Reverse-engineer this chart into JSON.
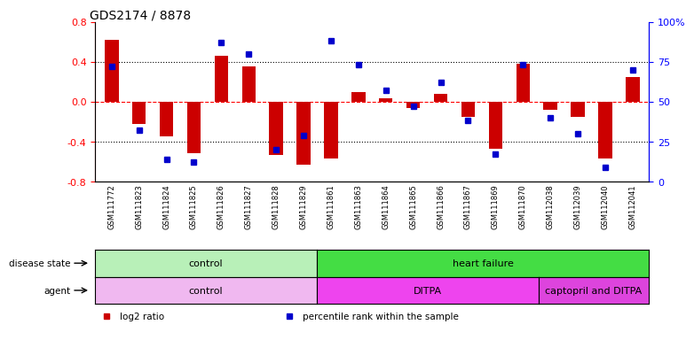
{
  "title": "GDS2174 / 8878",
  "samples": [
    "GSM111772",
    "GSM111823",
    "GSM111824",
    "GSM111825",
    "GSM111826",
    "GSM111827",
    "GSM111828",
    "GSM111829",
    "GSM111861",
    "GSM111863",
    "GSM111864",
    "GSM111865",
    "GSM111866",
    "GSM111867",
    "GSM111869",
    "GSM111870",
    "GSM112038",
    "GSM112039",
    "GSM112040",
    "GSM112041"
  ],
  "log2_ratio": [
    0.62,
    -0.22,
    -0.35,
    -0.52,
    0.46,
    0.35,
    -0.53,
    -0.63,
    -0.57,
    0.1,
    0.03,
    -0.06,
    0.08,
    -0.15,
    -0.47,
    0.38,
    -0.08,
    -0.15,
    -0.57,
    0.25
  ],
  "percentile": [
    72,
    32,
    14,
    12,
    87,
    80,
    20,
    29,
    88,
    73,
    57,
    47,
    62,
    38,
    17,
    73,
    40,
    30,
    9,
    70
  ],
  "ylim_left": [
    -0.8,
    0.8
  ],
  "ylim_right": [
    0,
    100
  ],
  "yticks_left": [
    -0.8,
    -0.4,
    0.0,
    0.4,
    0.8
  ],
  "yticks_right": [
    0,
    25,
    50,
    75,
    100
  ],
  "bar_color": "#cc0000",
  "dot_color": "#0000cc",
  "disease_state_groups": [
    {
      "label": "control",
      "start": 0,
      "end": 7,
      "color": "#b8f0b8"
    },
    {
      "label": "heart failure",
      "start": 8,
      "end": 19,
      "color": "#44dd44"
    }
  ],
  "agent_groups": [
    {
      "label": "control",
      "start": 0,
      "end": 7,
      "color": "#f0b8f0"
    },
    {
      "label": "DITPA",
      "start": 8,
      "end": 15,
      "color": "#ee44ee"
    },
    {
      "label": "captopril and DITPA",
      "start": 16,
      "end": 19,
      "color": "#dd44dd"
    }
  ],
  "legend": [
    {
      "label": "log2 ratio",
      "color": "#cc0000"
    },
    {
      "label": "percentile rank within the sample",
      "color": "#0000cc"
    }
  ],
  "disease_state_label": "disease state",
  "agent_label": "agent",
  "background_color": "#ffffff"
}
